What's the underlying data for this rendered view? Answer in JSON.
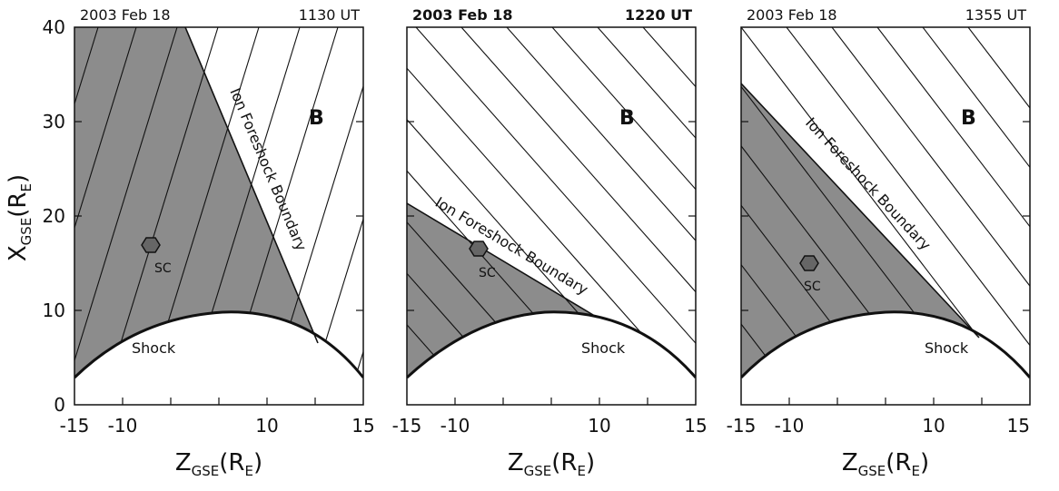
{
  "panels": [
    {
      "date": "2003 Feb 18",
      "time": "1130 UT",
      "bold_header": false,
      "boundary_label": "Ion Foreshock Boundary",
      "shock_label": "Shock",
      "sc_label": "SC",
      "field_label": "B"
    },
    {
      "date": "2003 Feb 18",
      "time": "1220 UT",
      "bold_header": true,
      "boundary_label": "Ion Foreshock Boundary",
      "shock_label": "Shock",
      "sc_label": "SC",
      "field_label": "B"
    },
    {
      "date": "2003 Feb 18",
      "time": "1355 UT",
      "bold_header": false,
      "boundary_label": "Ion Foreshock Boundary",
      "shock_label": "Shock",
      "sc_label": "SC",
      "field_label": "B"
    }
  ],
  "axes": {
    "y_ticks": [
      "0",
      "10",
      "20",
      "30",
      "40"
    ],
    "x_ticks": [
      "-15",
      "-10",
      "10",
      "15"
    ],
    "y_label_main": "X",
    "y_label_sub": "GSE",
    "y_label_paren_open": "(R",
    "y_label_paren_sub": "E",
    "y_label_paren_close": ")",
    "x_label_main": "Z",
    "x_label_sub": "GSE",
    "x_label_paren_open": "(R",
    "x_label_paren_sub": "E",
    "x_label_paren_close": ")"
  },
  "colors": {
    "foreshock_fill": "#8c8c8c",
    "line": "#111111",
    "background": "#ffffff"
  }
}
